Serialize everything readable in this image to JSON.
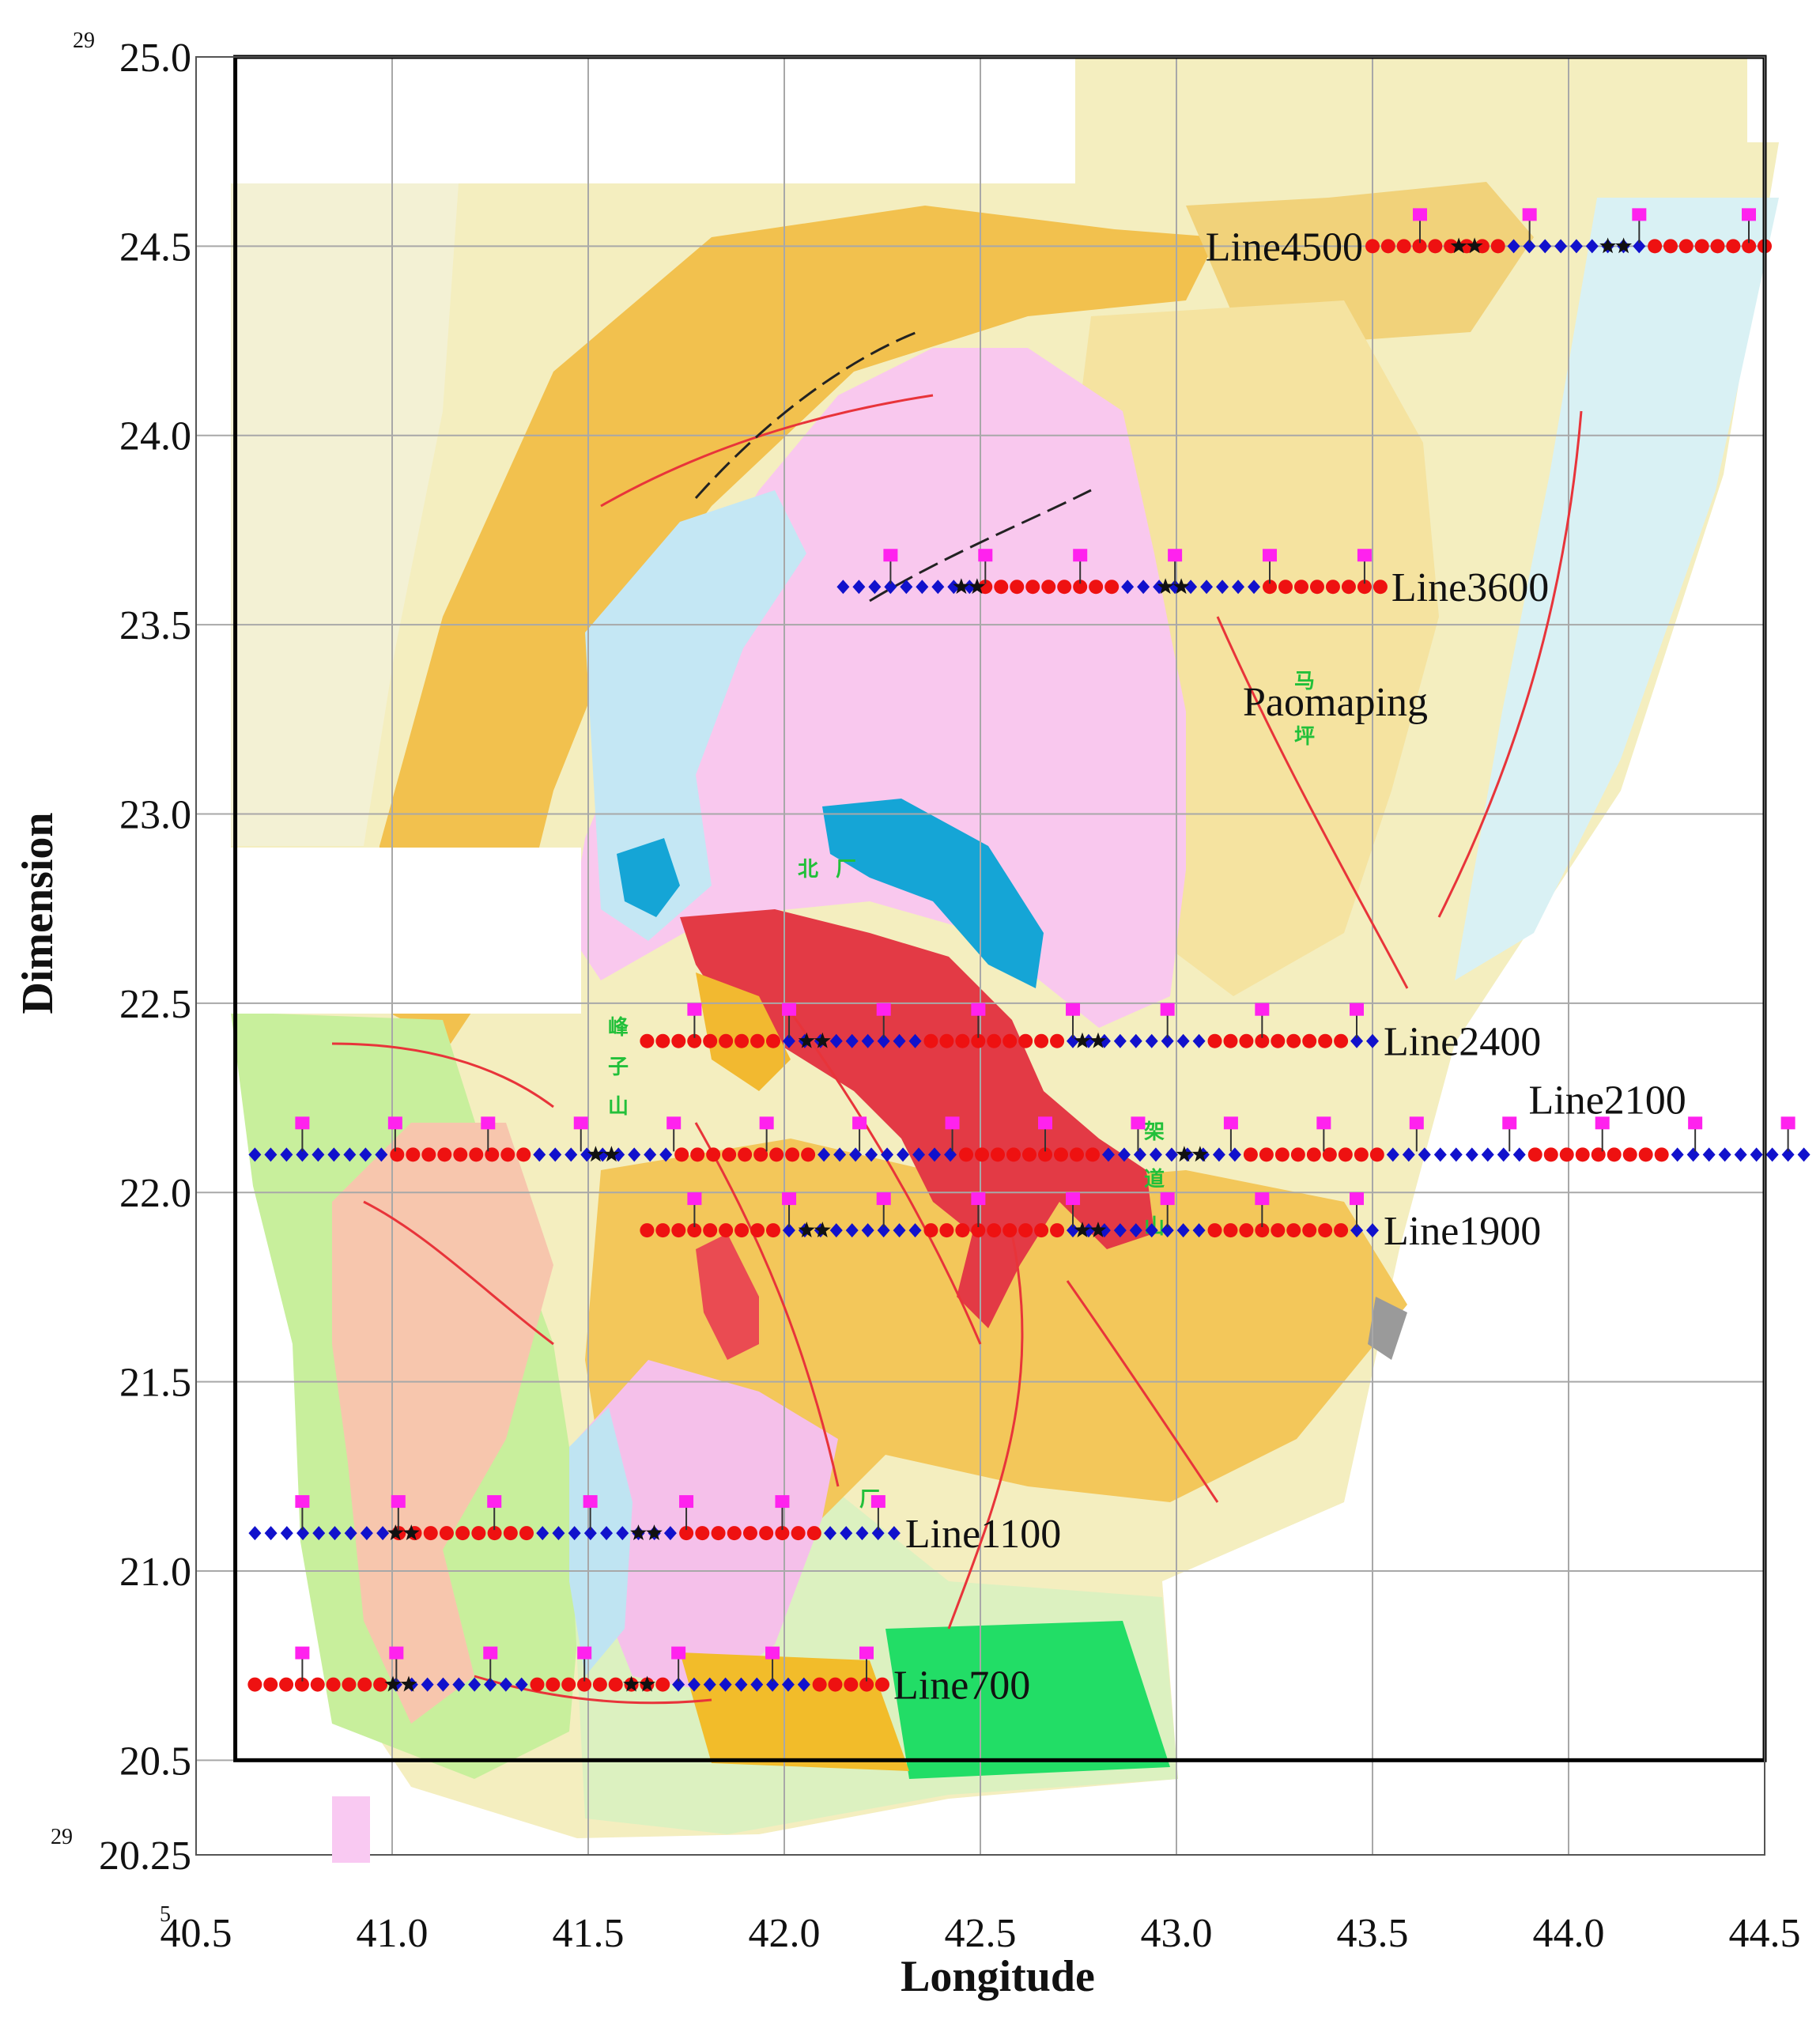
{
  "axes": {
    "xlabel": "Longitude",
    "ylabel": "Dimension",
    "x_ticks": [
      "40.5",
      "41.0",
      "41.5",
      "42.0",
      "42.5",
      "43.0",
      "43.5",
      "44.0",
      "44.5"
    ],
    "y_ticks": [
      "25.0",
      "24.5",
      "24.0",
      "23.5",
      "23.0",
      "22.5",
      "22.0",
      "21.5",
      "21.0",
      "20.5",
      "20.25"
    ],
    "x_prefix": "5",
    "y_prefix_top": "29",
    "y_prefix_bottom": "29",
    "xlim": [
      40.5,
      44.5
    ],
    "ylim": [
      20.25,
      25.0
    ]
  },
  "survey_lines": [
    {
      "name": "Line4500",
      "y": 24.5,
      "x_start": 43.5,
      "x_end": 44.5,
      "label_side": "left"
    },
    {
      "name": "Line3600",
      "y": 23.6,
      "x_start": 42.15,
      "x_end": 43.52,
      "label_side": "right"
    },
    {
      "name": "Line2400",
      "y": 22.4,
      "x_start": 41.65,
      "x_end": 43.5,
      "label_side": "right"
    },
    {
      "name": "Line2100",
      "y": 22.1,
      "x_start": 40.65,
      "x_end": 44.6,
      "label_side": "above"
    },
    {
      "name": "Line1900",
      "y": 21.9,
      "x_start": 41.65,
      "x_end": 43.5,
      "label_side": "right"
    },
    {
      "name": "Line1100",
      "y": 21.1,
      "x_start": 40.65,
      "x_end": 42.28,
      "label_side": "right"
    },
    {
      "name": "Line700",
      "y": 20.7,
      "x_start": 40.65,
      "x_end": 42.25,
      "label_side": "right"
    }
  ],
  "place_labels": {
    "paomaping": "Paomaping"
  },
  "cn_labels": [
    "马",
    "坪",
    "北",
    "厂",
    "峰",
    "子",
    "山",
    "架",
    "道",
    "山",
    "厂"
  ],
  "colors": {
    "frame": "#000000",
    "red_point": "#ee1111",
    "blue_point": "#1111cc",
    "magenta_marker": "#ff22ee",
    "star": "#111111",
    "geo_yellow": "#f4e9a6",
    "geo_orange": "#f2c14e",
    "geo_pink": "#f9c8ee",
    "geo_lightblue": "#c4e7f4",
    "geo_cyan": "#15a5d6",
    "geo_red": "#e33a45",
    "geo_green": "#c8ef9c",
    "geo_lightgreen": "#dcf1c0",
    "geo_salmon": "#f7c6ad",
    "geo_brightgreen": "#22dd66",
    "geo_paleyellow": "#fbf4c8"
  },
  "icons": [
    "red-circle-point",
    "blue-diamond-point",
    "magenta-square-marker",
    "black-star-marker"
  ]
}
